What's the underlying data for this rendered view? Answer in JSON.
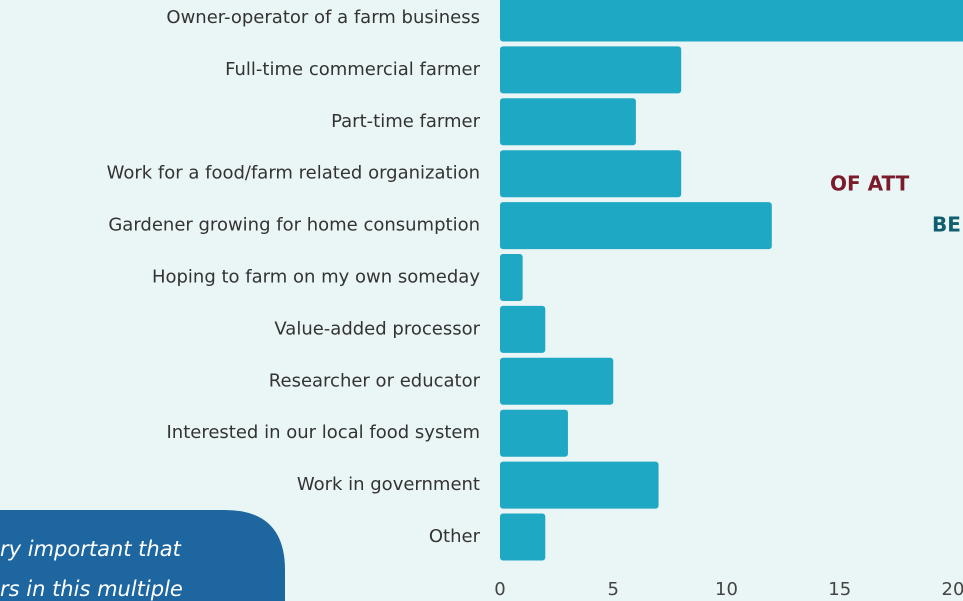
{
  "chart_data": {
    "type": "bar",
    "orientation": "horizontal",
    "categories": [
      "Owner-operator of a farm business",
      "Full-time commercial farmer",
      "Part-time farmer",
      "Work for a food/farm related organization",
      "Gardener growing for home consumption",
      "Hoping to farm on my own someday",
      "Value-added processor",
      "Researcher or educator",
      "Interested in our local food system",
      "Work in government",
      "Other"
    ],
    "values": [
      21,
      8,
      6,
      8,
      12,
      1,
      2,
      5,
      3,
      7,
      2
    ],
    "color": "#1fa8c4",
    "xlim": [
      0,
      20
    ],
    "xticks": [
      0,
      5,
      10,
      15,
      20
    ],
    "annotations": [
      "OF ATT",
      "BE",
      "ry important that",
      "rs in this multiple"
    ]
  }
}
